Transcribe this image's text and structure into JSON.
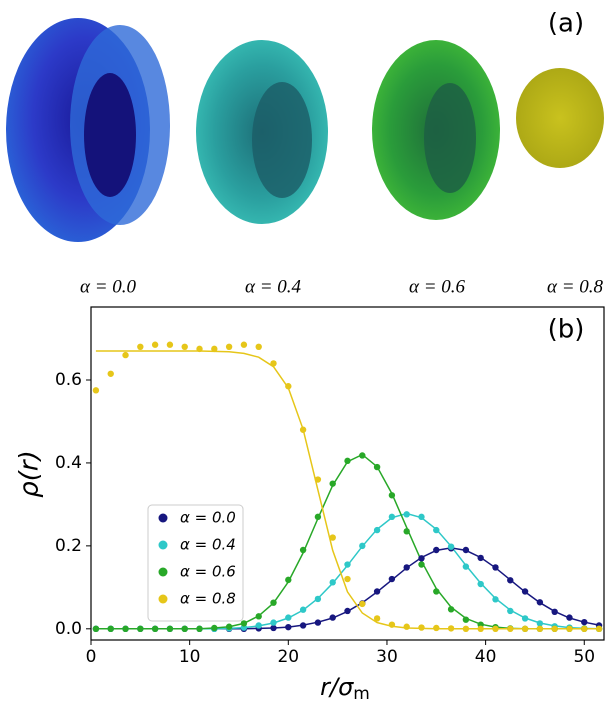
{
  "panel_a": {
    "label": "(a)",
    "captions": [
      "α = 0.0",
      "α = 0.4",
      "α = 0.6",
      "α = 0.8"
    ]
  },
  "chart_data": {
    "type": "scatter",
    "panel_label": "(b)",
    "xlabel": "r/σ",
    "xlabel_sub": "m",
    "ylabel": "ρ(r)",
    "x": [
      0.5,
      2,
      3.5,
      5,
      6.5,
      8,
      9.5,
      11,
      12.5,
      14,
      15.5,
      17,
      18.5,
      20,
      21.5,
      23,
      24.5,
      26,
      27.5,
      29,
      30.5,
      32,
      33.5,
      35,
      36.5,
      38,
      39.5,
      41,
      42.5,
      44,
      45.5,
      47,
      48.5,
      50,
      51.5
    ],
    "xlim": [
      0,
      52
    ],
    "xticks": [
      0,
      10,
      20,
      30,
      40,
      50
    ],
    "ylim": [
      -0.027,
      0.776
    ],
    "yticks": [
      {
        "value": 0,
        "label": "0.0"
      },
      {
        "value": 0.2,
        "label": "0.2"
      },
      {
        "value": 0.4,
        "label": "0.4"
      },
      {
        "value": 0.6,
        "label": "0.6"
      }
    ],
    "legend_loc": "center left",
    "series": [
      {
        "name": "α = 0.0",
        "color": "#17177f",
        "values": [
          0,
          0,
          0,
          0,
          0,
          0,
          0,
          0,
          0,
          0,
          0,
          0.001,
          0.002,
          0.004,
          0.008,
          0.015,
          0.027,
          0.043,
          0.061,
          0.09,
          0.12,
          0.148,
          0.17,
          0.19,
          0.194,
          0.19,
          0.171,
          0.148,
          0.117,
          0.09,
          0.064,
          0.041,
          0.027,
          0.016,
          0.008
        ],
        "fit": [
          0,
          0,
          0,
          0,
          0,
          0,
          0,
          0,
          0,
          0,
          0,
          0.001,
          0.002,
          0.004,
          0.009,
          0.016,
          0.026,
          0.042,
          0.063,
          0.089,
          0.118,
          0.147,
          0.172,
          0.189,
          0.195,
          0.189,
          0.172,
          0.147,
          0.118,
          0.089,
          0.063,
          0.042,
          0.026,
          0.016,
          0.009
        ]
      },
      {
        "name": "α = 0.4",
        "color": "#2ec8c8",
        "values": [
          0,
          0,
          0,
          0,
          0,
          0,
          0,
          0,
          0,
          0.001,
          0.003,
          0.008,
          0.015,
          0.027,
          0.046,
          0.072,
          0.112,
          0.155,
          0.2,
          0.238,
          0.27,
          0.276,
          0.27,
          0.238,
          0.198,
          0.15,
          0.108,
          0.071,
          0.043,
          0.025,
          0.013,
          0.006,
          0.003,
          0.001,
          0
        ],
        "fit": [
          0,
          0,
          0,
          0,
          0,
          0,
          0,
          0,
          0,
          0.001,
          0.003,
          0.007,
          0.014,
          0.026,
          0.045,
          0.073,
          0.11,
          0.153,
          0.199,
          0.24,
          0.268,
          0.278,
          0.268,
          0.24,
          0.199,
          0.153,
          0.11,
          0.073,
          0.045,
          0.026,
          0.014,
          0.007,
          0.003,
          0.001,
          0
        ]
      },
      {
        "name": "α = 0.6",
        "color": "#28a828",
        "values": [
          0,
          0,
          0,
          0,
          0,
          0,
          0,
          0,
          0.002,
          0.005,
          0.013,
          0.03,
          0.063,
          0.118,
          0.19,
          0.27,
          0.35,
          0.405,
          0.418,
          0.39,
          0.322,
          0.235,
          0.155,
          0.09,
          0.047,
          0.022,
          0.01,
          0.004,
          0.001,
          0,
          0,
          0,
          0,
          0,
          0
        ],
        "fit": [
          0,
          0,
          0,
          0,
          0,
          0,
          0,
          0,
          0.002,
          0.005,
          0.013,
          0.031,
          0.062,
          0.113,
          0.183,
          0.266,
          0.346,
          0.403,
          0.42,
          0.391,
          0.326,
          0.244,
          0.163,
          0.097,
          0.052,
          0.025,
          0.011,
          0.004,
          0.001,
          0,
          0,
          0,
          0,
          0,
          0
        ]
      },
      {
        "name": "α = 0.8",
        "color": "#e6c619",
        "values": [
          0.575,
          0.615,
          0.66,
          0.68,
          0.685,
          0.685,
          0.68,
          0.675,
          0.675,
          0.68,
          0.685,
          0.68,
          0.64,
          0.585,
          0.48,
          0.36,
          0.22,
          0.12,
          0.06,
          0.025,
          0.01,
          0.005,
          0.003,
          0.002,
          0.001,
          0,
          0,
          0,
          0,
          0,
          0,
          0,
          0,
          0,
          0
        ],
        "fit": [
          0.67,
          0.67,
          0.67,
          0.67,
          0.67,
          0.67,
          0.67,
          0.67,
          0.669,
          0.668,
          0.664,
          0.655,
          0.632,
          0.581,
          0.481,
          0.335,
          0.189,
          0.089,
          0.038,
          0.015,
          0.006,
          0.002,
          0.001,
          0,
          0,
          0,
          0,
          0,
          0,
          0,
          0,
          0,
          0,
          0,
          0
        ]
      }
    ]
  }
}
